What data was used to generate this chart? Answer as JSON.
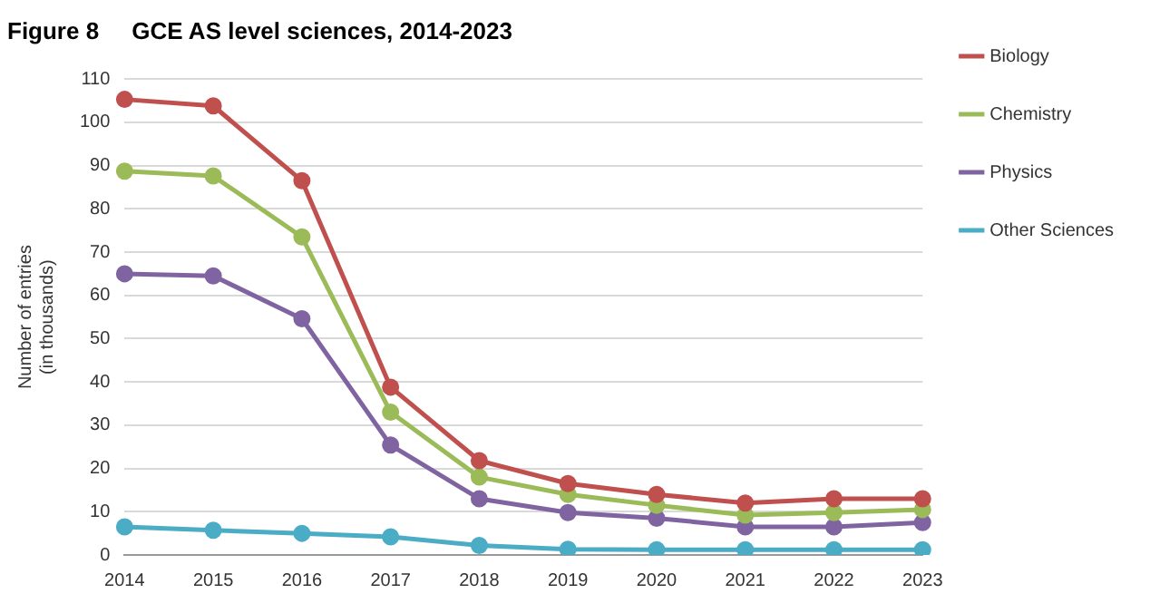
{
  "chart_data": {
    "type": "line",
    "title": "Figure 8     GCE AS level sciences, 2014-2023",
    "ylabel": "Number of entries\n(in thousands)",
    "categories": [
      "2014",
      "2015",
      "2016",
      "2017",
      "2018",
      "2019",
      "2020",
      "2021",
      "2022",
      "2023"
    ],
    "series": [
      {
        "name": "Biology",
        "color": "#c0504d",
        "values": [
          105.3,
          103.8,
          86.5,
          38.8,
          21.8,
          16.5,
          14,
          12,
          13,
          13
        ]
      },
      {
        "name": "Chemistry",
        "color": "#9bbb59",
        "values": [
          88.7,
          87.6,
          73.5,
          33,
          18,
          14,
          11.5,
          9.2,
          9.8,
          10.5
        ]
      },
      {
        "name": "Physics",
        "color": "#8064a2",
        "values": [
          65,
          64.5,
          54.6,
          25.4,
          13,
          9.8,
          8.5,
          6.5,
          6.5,
          7.5
        ]
      },
      {
        "name": "Other Sciences",
        "color": "#4bacc6",
        "values": [
          6.5,
          5.7,
          5,
          4.2,
          2.2,
          1.3,
          1.2,
          1.2,
          1.2,
          1.2
        ]
      }
    ],
    "ylim": [
      0,
      110
    ],
    "yticks": [
      0,
      10,
      20,
      30,
      40,
      50,
      60,
      70,
      80,
      90,
      100,
      110
    ],
    "grid": "y",
    "legend": "right",
    "marker": "circle",
    "line_style": "solid"
  }
}
